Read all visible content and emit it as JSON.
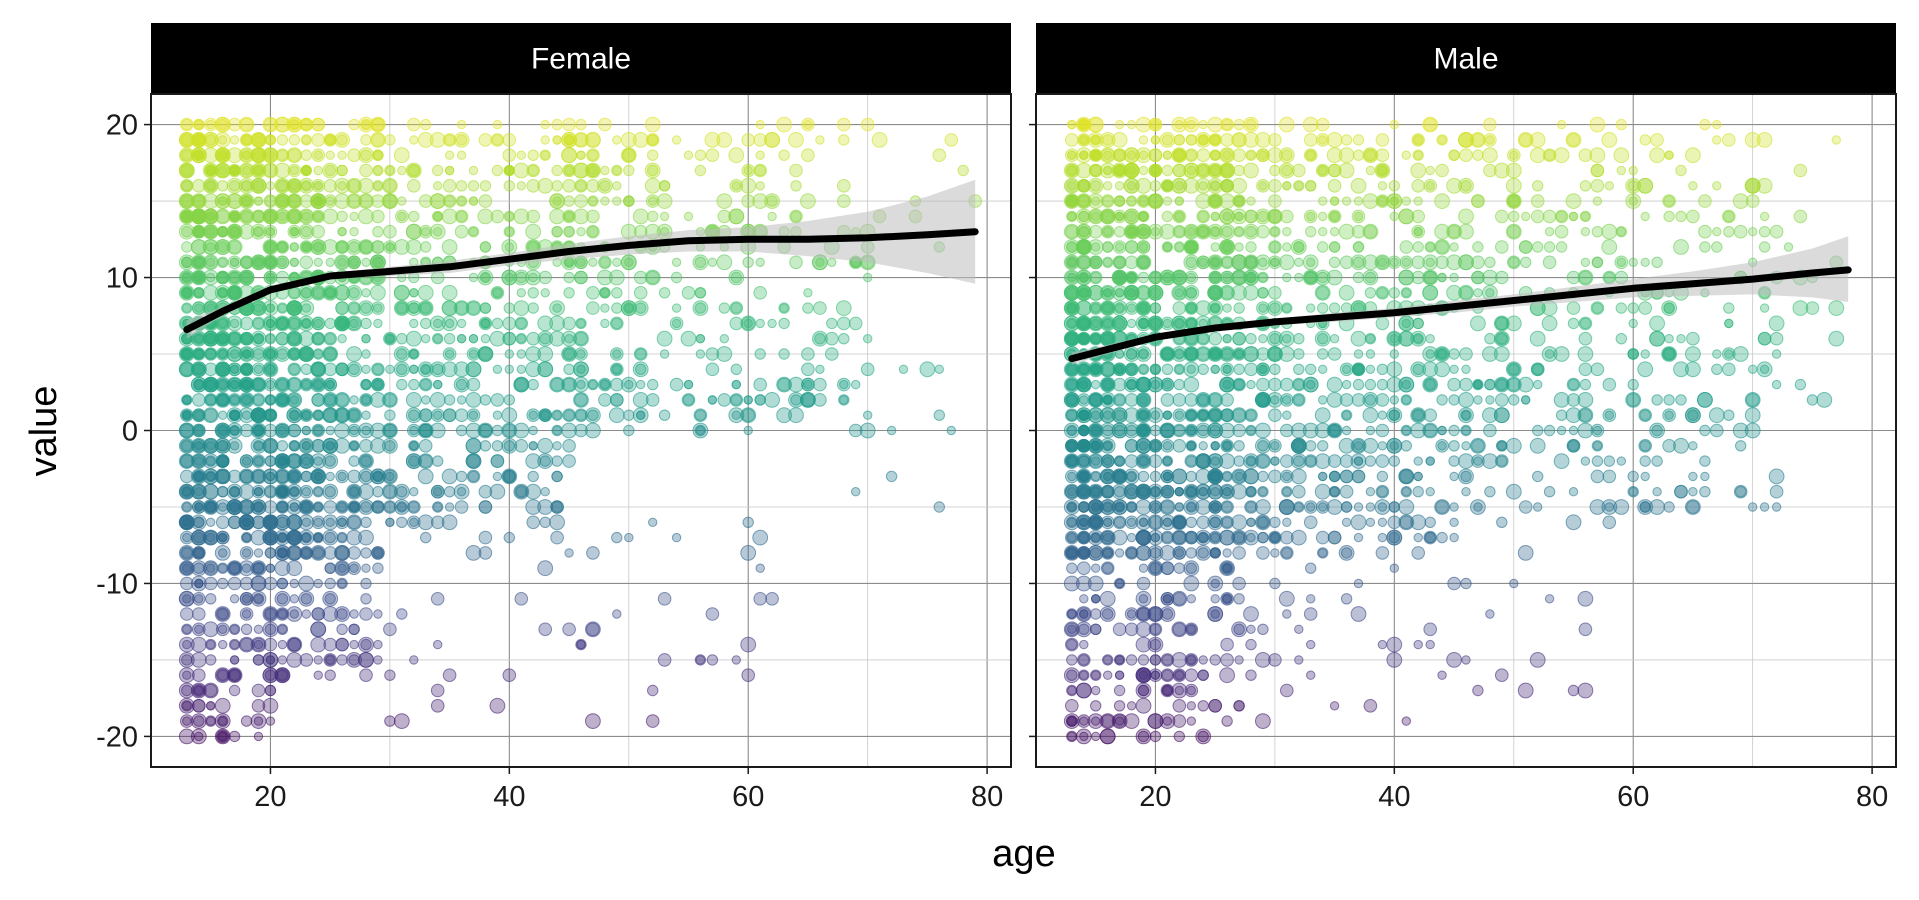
{
  "chart_data": {
    "type": "scatter",
    "xlabel": "age",
    "ylabel": "value",
    "xlim": [
      10,
      82
    ],
    "ylim": [
      -22,
      22
    ],
    "x_ticks": [
      20,
      40,
      60,
      80
    ],
    "y_ticks": [
      -20,
      -10,
      0,
      10,
      20
    ],
    "x_tick_labels": [
      "20",
      "40",
      "60",
      "80"
    ],
    "y_tick_labels": [
      "-20",
      "-10",
      "0",
      "10",
      "20"
    ],
    "grid": true,
    "color_scale": "viridis, mapped to value",
    "point_opacity": 0.35,
    "smooth": "loess with 95% confidence band",
    "facets": [
      {
        "name": "Female",
        "smooth_line": [
          {
            "x": 13,
            "y": 6.6,
            "lo": 6.0,
            "hi": 7.2
          },
          {
            "x": 16,
            "y": 7.8,
            "lo": 7.5,
            "hi": 8.1
          },
          {
            "x": 20,
            "y": 9.2,
            "lo": 9.0,
            "hi": 9.4
          },
          {
            "x": 25,
            "y": 10.1,
            "lo": 9.9,
            "hi": 10.3
          },
          {
            "x": 30,
            "y": 10.4,
            "lo": 10.1,
            "hi": 10.7
          },
          {
            "x": 35,
            "y": 10.7,
            "lo": 10.3,
            "hi": 11.1
          },
          {
            "x": 40,
            "y": 11.2,
            "lo": 10.8,
            "hi": 11.6
          },
          {
            "x": 45,
            "y": 11.7,
            "lo": 11.2,
            "hi": 12.2
          },
          {
            "x": 50,
            "y": 12.1,
            "lo": 11.5,
            "hi": 12.7
          },
          {
            "x": 55,
            "y": 12.4,
            "lo": 11.7,
            "hi": 13.1
          },
          {
            "x": 60,
            "y": 12.5,
            "lo": 11.7,
            "hi": 13.3
          },
          {
            "x": 65,
            "y": 12.5,
            "lo": 11.4,
            "hi": 13.7
          },
          {
            "x": 70,
            "y": 12.6,
            "lo": 11.0,
            "hi": 14.3
          },
          {
            "x": 75,
            "y": 12.8,
            "lo": 10.3,
            "hi": 15.3
          },
          {
            "x": 79,
            "y": 13.0,
            "lo": 9.6,
            "hi": 16.4
          }
        ],
        "clusters": [
          {
            "x": [
              13,
              24
            ],
            "y": [
              -8,
              20
            ],
            "n": 1100
          },
          {
            "x": [
              13,
              20
            ],
            "y": [
              -20,
              -8
            ],
            "n": 150
          },
          {
            "x": [
              20,
              30
            ],
            "y": [
              -16,
              -4
            ],
            "n": 160
          },
          {
            "x": [
              24,
              45
            ],
            "y": [
              -6,
              20
            ],
            "n": 700
          },
          {
            "x": [
              45,
              70
            ],
            "y": [
              0,
              20
            ],
            "n": 380
          },
          {
            "x": [
              30,
              62
            ],
            "y": [
              -19,
              -4
            ],
            "n": 60
          },
          {
            "x": [
              68,
              80
            ],
            "y": [
              -5,
              20
            ],
            "n": 26
          }
        ]
      },
      {
        "name": "Male",
        "smooth_line": [
          {
            "x": 13,
            "y": 4.7,
            "lo": 4.3,
            "hi": 5.1
          },
          {
            "x": 16,
            "y": 5.3,
            "lo": 5.0,
            "hi": 5.6
          },
          {
            "x": 20,
            "y": 6.1,
            "lo": 5.9,
            "hi": 6.3
          },
          {
            "x": 25,
            "y": 6.7,
            "lo": 6.5,
            "hi": 6.9
          },
          {
            "x": 30,
            "y": 7.1,
            "lo": 6.9,
            "hi": 7.3
          },
          {
            "x": 35,
            "y": 7.4,
            "lo": 7.1,
            "hi": 7.7
          },
          {
            "x": 40,
            "y": 7.7,
            "lo": 7.4,
            "hi": 8.0
          },
          {
            "x": 45,
            "y": 8.1,
            "lo": 7.7,
            "hi": 8.5
          },
          {
            "x": 50,
            "y": 8.5,
            "lo": 8.1,
            "hi": 8.9
          },
          {
            "x": 55,
            "y": 8.9,
            "lo": 8.4,
            "hi": 9.4
          },
          {
            "x": 60,
            "y": 9.3,
            "lo": 8.7,
            "hi": 9.9
          },
          {
            "x": 65,
            "y": 9.6,
            "lo": 8.8,
            "hi": 10.4
          },
          {
            "x": 70,
            "y": 9.9,
            "lo": 8.9,
            "hi": 11.0
          },
          {
            "x": 75,
            "y": 10.3,
            "lo": 8.7,
            "hi": 11.9
          },
          {
            "x": 78,
            "y": 10.5,
            "lo": 8.4,
            "hi": 12.7
          }
        ],
        "clusters": [
          {
            "x": [
              13,
              25
            ],
            "y": [
              -8,
              20
            ],
            "n": 1100
          },
          {
            "x": [
              13,
              28
            ],
            "y": [
              -20,
              -8
            ],
            "n": 220
          },
          {
            "x": [
              25,
              45
            ],
            "y": [
              -8,
              20
            ],
            "n": 750
          },
          {
            "x": [
              45,
              72
            ],
            "y": [
              -6,
              20
            ],
            "n": 420
          },
          {
            "x": [
              28,
              56
            ],
            "y": [
              -20,
              -8
            ],
            "n": 50
          },
          {
            "x": [
              70,
              78
            ],
            "y": [
              0,
              20
            ],
            "n": 22
          }
        ]
      }
    ]
  }
}
